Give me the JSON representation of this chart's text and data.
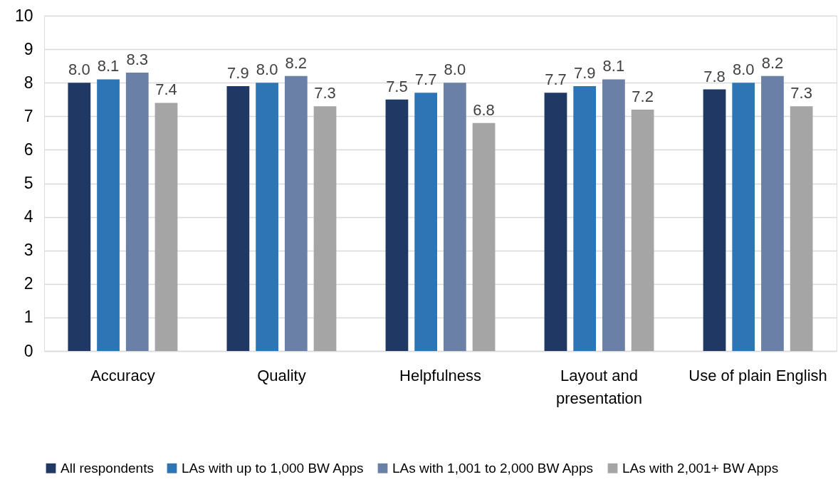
{
  "chart_data": {
    "type": "bar",
    "categories": [
      "Accuracy",
      "Quality",
      "Helpfulness",
      "Layout and presentation",
      "Use of plain English"
    ],
    "series": [
      {
        "name": "All respondents",
        "color": "#203864",
        "values": [
          8.0,
          7.9,
          7.5,
          7.7,
          7.8
        ],
        "value_labels": [
          "8.0",
          "7.9",
          "7.5",
          "7.7",
          "7.8"
        ]
      },
      {
        "name": "LAs with up to 1,000 BW Apps",
        "color": "#2e75b6",
        "values": [
          8.1,
          8.0,
          7.7,
          7.9,
          8.0
        ],
        "value_labels": [
          "8.1",
          "8.0",
          "7.7",
          "7.9",
          "8.0"
        ]
      },
      {
        "name": "LAs with 1,001 to 2,000 BW Apps",
        "color": "#6a80a6",
        "values": [
          8.3,
          8.2,
          8.0,
          8.1,
          8.2
        ],
        "value_labels": [
          "8.3",
          "8.2",
          "8.0",
          "8.1",
          "8.2"
        ]
      },
      {
        "name": "LAs with 2,001+ BW Apps",
        "color": "#a5a5a5",
        "values": [
          7.4,
          7.3,
          6.8,
          7.2,
          7.3
        ],
        "value_labels": [
          "7.4",
          "7.3",
          "6.8",
          "7.2",
          "7.3"
        ]
      }
    ],
    "ylim": [
      0,
      10
    ],
    "yticks": [
      0,
      1,
      2,
      3,
      4,
      5,
      6,
      7,
      8,
      9,
      10
    ],
    "grid": "y",
    "legend": "bottom"
  }
}
